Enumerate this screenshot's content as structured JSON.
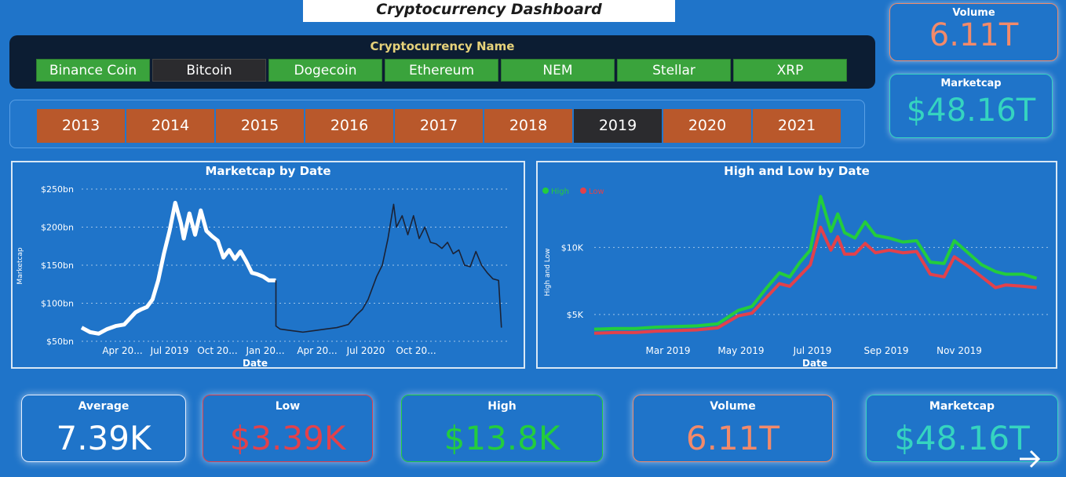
{
  "header": {
    "title": "Cryptocurrency Dashboard"
  },
  "coin_filter": {
    "title": "Cryptocurrency Name",
    "items": [
      "Binance Coin",
      "Bitcoin",
      "Dogecoin",
      "Ethereum",
      "NEM",
      "Stellar",
      "XRP"
    ],
    "selected": "Bitcoin"
  },
  "year_filter": {
    "items": [
      "2013",
      "2014",
      "2015",
      "2016",
      "2017",
      "2018",
      "2019",
      "2020",
      "2021"
    ],
    "selected": "2019"
  },
  "kpi_top": {
    "volume_label": "Volume",
    "volume_value": "6.11T",
    "marketcap_label": "Marketcap",
    "marketcap_value": "$48.16T"
  },
  "kpi_bottom": {
    "average_label": "Average",
    "average_value": "7.39K",
    "low_label": "Low",
    "low_value": "$3.39K",
    "high_label": "High",
    "high_value": "$13.8K",
    "volume_label": "Volume",
    "volume_value": "6.11T",
    "marketcap_label": "Marketcap",
    "marketcap_value": "$48.16T"
  },
  "colors": {
    "background": "#1f74c9",
    "coin_button": "#3aa33c",
    "year_button": "#b9582b",
    "selected": "#2b2b2e",
    "low": "#e2414b",
    "high": "#23cd3d",
    "volume": "#f28a6a",
    "marketcap": "#35d4c0"
  },
  "icons": {
    "next": "arrow-right-icon"
  },
  "chart_data": [
    {
      "type": "line",
      "title": "Marketcap by Date",
      "xlabel": "Date",
      "ylabel": "Marketcap",
      "ylim": [
        50,
        250
      ],
      "y_ticks": [
        "$50bn",
        "$100bn",
        "$150bn",
        "$200bn",
        "$250bn"
      ],
      "x_ticks": [
        "Apr 20...",
        "Jul 2019",
        "Oct 20...",
        "Jan 20...",
        "Apr 20...",
        "Jul 2020",
        "Oct 20..."
      ],
      "grid": true,
      "series": [
        {
          "values": [
            [
              0,
              68
            ],
            [
              6,
              62
            ],
            [
              12,
              60
            ],
            [
              18,
              66
            ],
            [
              24,
              70
            ],
            [
              30,
              72
            ],
            [
              34,
              80
            ],
            [
              38,
              88
            ],
            [
              42,
              92
            ],
            [
              46,
              95
            ],
            [
              50,
              105
            ],
            [
              54,
              130
            ],
            [
              58,
              165
            ],
            [
              62,
              195
            ],
            [
              66,
              232
            ],
            [
              70,
              205
            ],
            [
              72,
              185
            ],
            [
              76,
              218
            ],
            [
              80,
              190
            ],
            [
              84,
              222
            ],
            [
              88,
              195
            ],
            [
              92,
              188
            ],
            [
              96,
              182
            ],
            [
              100,
              160
            ],
            [
              104,
              170
            ],
            [
              108,
              158
            ],
            [
              112,
              168
            ],
            [
              116,
              155
            ],
            [
              120,
              140
            ],
            [
              124,
              138
            ],
            [
              128,
              135
            ],
            [
              132,
              130
            ],
            [
              137,
              130
            ]
          ]
        },
        {
          "values": [
            [
              137,
              130
            ],
            [
              137,
              70
            ],
            [
              140,
              66
            ],
            [
              148,
              64
            ],
            [
              156,
              62
            ],
            [
              164,
              64
            ],
            [
              172,
              66
            ],
            [
              180,
              68
            ],
            [
              188,
              72
            ],
            [
              194,
              85
            ],
            [
              198,
              92
            ],
            [
              202,
              105
            ],
            [
              208,
              135
            ],
            [
              212,
              150
            ],
            [
              216,
              185
            ],
            [
              220,
              230
            ],
            [
              222,
              200
            ],
            [
              226,
              215
            ],
            [
              230,
              190
            ],
            [
              234,
              215
            ],
            [
              238,
              185
            ],
            [
              242,
              200
            ],
            [
              246,
              180
            ],
            [
              250,
              178
            ],
            [
              254,
              172
            ],
            [
              258,
              180
            ],
            [
              262,
              165
            ],
            [
              266,
              170
            ],
            [
              270,
              150
            ],
            [
              274,
              148
            ],
            [
              278,
              168
            ],
            [
              282,
              150
            ],
            [
              286,
              140
            ],
            [
              290,
              132
            ],
            [
              294,
              130
            ],
            [
              296,
              68
            ]
          ]
        }
      ]
    },
    {
      "type": "line",
      "title": "High and Low by Date",
      "xlabel": "Date",
      "ylabel": "High and Low",
      "y_ticks": [
        "$5K",
        "$10K"
      ],
      "ylim": [
        3000,
        14000
      ],
      "x_ticks": [
        "Mar 2019",
        "May 2019",
        "Jul 2019",
        "Sep 2019",
        "Nov 2019"
      ],
      "legend": "top-left",
      "grid": true,
      "series": [
        {
          "name": "High",
          "values": [
            [
              0,
              3900
            ],
            [
              12,
              3950
            ],
            [
              24,
              3950
            ],
            [
              36,
              4050
            ],
            [
              48,
              4100
            ],
            [
              60,
              4150
            ],
            [
              72,
              4300
            ],
            [
              84,
              5300
            ],
            [
              92,
              5600
            ],
            [
              100,
              6900
            ],
            [
              108,
              8100
            ],
            [
              114,
              7800
            ],
            [
              120,
              8900
            ],
            [
              126,
              9800
            ],
            [
              132,
              13800
            ],
            [
              138,
              11200
            ],
            [
              142,
              12500
            ],
            [
              146,
              11100
            ],
            [
              152,
              10700
            ],
            [
              158,
              11900
            ],
            [
              164,
              10900
            ],
            [
              172,
              10700
            ],
            [
              180,
              10400
            ],
            [
              188,
              10500
            ],
            [
              196,
              8900
            ],
            [
              204,
              8800
            ],
            [
              210,
              10500
            ],
            [
              218,
              9600
            ],
            [
              226,
              8700
            ],
            [
              234,
              8200
            ],
            [
              240,
              8000
            ],
            [
              250,
              8000
            ],
            [
              258,
              7700
            ]
          ]
        },
        {
          "name": "Low",
          "values": [
            [
              0,
              3600
            ],
            [
              12,
              3650
            ],
            [
              24,
              3650
            ],
            [
              36,
              3750
            ],
            [
              48,
              3800
            ],
            [
              60,
              3850
            ],
            [
              72,
              4000
            ],
            [
              84,
              4900
            ],
            [
              92,
              5100
            ],
            [
              100,
              6200
            ],
            [
              108,
              7300
            ],
            [
              114,
              7100
            ],
            [
              120,
              7900
            ],
            [
              126,
              8700
            ],
            [
              132,
              11500
            ],
            [
              138,
              9800
            ],
            [
              142,
              10800
            ],
            [
              146,
              9500
            ],
            [
              152,
              9500
            ],
            [
              158,
              10300
            ],
            [
              164,
              9600
            ],
            [
              172,
              9800
            ],
            [
              180,
              9600
            ],
            [
              188,
              9700
            ],
            [
              196,
              8000
            ],
            [
              204,
              7800
            ],
            [
              210,
              9300
            ],
            [
              218,
              8600
            ],
            [
              226,
              7800
            ],
            [
              234,
              7000
            ],
            [
              240,
              7200
            ],
            [
              250,
              7100
            ],
            [
              258,
              7000
            ]
          ]
        }
      ]
    }
  ]
}
